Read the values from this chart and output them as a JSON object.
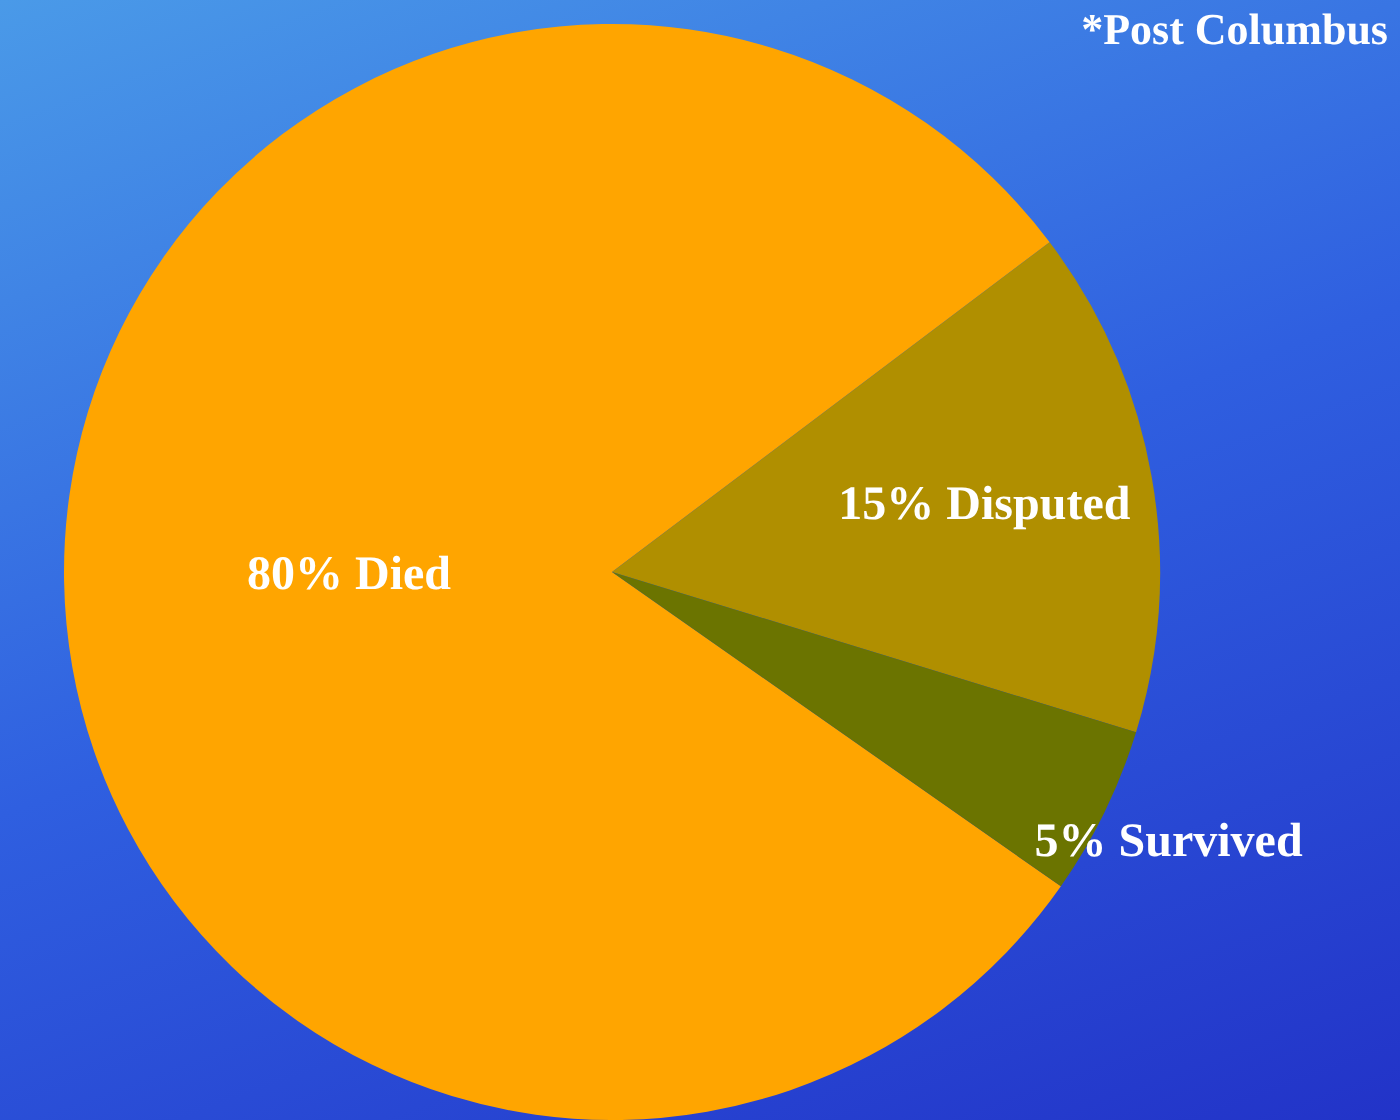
{
  "chart_data": {
    "type": "pie",
    "categories": [
      "Died",
      "Disputed",
      "Survived"
    ],
    "values": [
      80,
      15,
      5
    ],
    "value_labels": [
      "80%",
      "15%",
      "5%"
    ],
    "colors": [
      "#ffa500",
      "#b08f00",
      "#6b7400"
    ],
    "annotations": [
      "*Post Columbus"
    ],
    "legend": false
  }
}
